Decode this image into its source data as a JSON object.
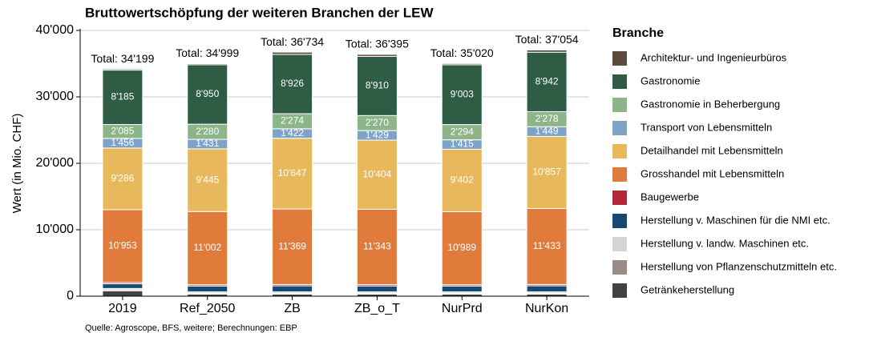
{
  "chart_data": {
    "type": "stacked_bar",
    "title": "Bruttowertschöpfung der weiteren Branchen der LEW",
    "y_label": "Wert (in Mio. CHF)",
    "caption": "Quelle: Agroscope, BFS, weitere; Berechnungen: EBP",
    "legend_title": "Branche",
    "legend_position": "right",
    "grid": true,
    "categories": [
      "2019",
      "Ref_2050",
      "ZB",
      "ZB_o_T",
      "NurPrd",
      "NurKon"
    ],
    "totals": [
      34199,
      34999,
      36734,
      36395,
      35020,
      37054
    ],
    "total_labels": [
      "Total: 34'199",
      "Total: 34'999",
      "Total: 36'734",
      "Total: 36'395",
      "Total: 35'020",
      "Total: 37'054"
    ],
    "ylim": [
      0,
      40000
    ],
    "yticks": [
      0,
      {
        "value": 10000,
        "label": "10'000"
      },
      {
        "value": 20000,
        "label": "20'000"
      },
      {
        "value": 30000,
        "label": "30'000"
      },
      {
        "value": 40000,
        "label": "40'000"
      }
    ],
    "series": [
      {
        "name": "Getränkeherstellung",
        "color": "#424242",
        "values": [
          811,
          300,
          300,
          300,
          300,
          300
        ]
      },
      {
        "name": "Herstellung von Pflanzenschutzmitteln etc.",
        "color": "#9b8b89",
        "values": [
          150,
          150,
          150,
          150,
          150,
          150
        ]
      },
      {
        "name": "Herstellung v. landw. Maschinen etc.",
        "color": "#d7d3d1",
        "values": [
          200,
          200,
          200,
          200,
          200,
          200
        ]
      },
      {
        "name": "Herstellung v. Maschinen für die NMI etc.",
        "color": "#154b72",
        "values": [
          700,
          880,
          908,
          892,
          880,
          911
        ]
      },
      {
        "name": "Baugewerbe",
        "color": "#b5283a",
        "values": [
          200,
          200,
          200,
          200,
          200,
          200
        ]
      },
      {
        "name": "Grosshandel mit Lebensmitteln",
        "color": "#e07b3c",
        "values": [
          10953,
          11002,
          11369,
          11343,
          10989,
          11433
        ],
        "value_labels": [
          "10'953",
          "11'002",
          "11'369",
          "11'343",
          "10'989",
          "11'433"
        ]
      },
      {
        "name": "Detailhandel mit Lebensmitteln",
        "color": "#e8b85c",
        "values": [
          9286,
          9445,
          10647,
          10404,
          9402,
          10857
        ],
        "value_labels": [
          "9'286",
          "9'445",
          "10'647",
          "10'404",
          "9'402",
          "10'857"
        ]
      },
      {
        "name": "Transport von Lebensmitteln",
        "color": "#7fa3c6",
        "values": [
          1456,
          1431,
          1422,
          1429,
          1415,
          1449
        ],
        "value_labels": [
          "1'456",
          "1'431",
          "1'422",
          "1'429",
          "1'415",
          "1'449"
        ]
      },
      {
        "name": "Gastronomie in Beherbergung",
        "color": "#8db58a",
        "values": [
          2085,
          2280,
          2274,
          2270,
          2294,
          2278
        ],
        "value_labels": [
          "2'085",
          "2'280",
          "2'274",
          "2'270",
          "2'294",
          "2'278"
        ]
      },
      {
        "name": "Gastronomie",
        "color": "#2e5c45",
        "values": [
          8185,
          8950,
          8926,
          8910,
          9003,
          8942
        ],
        "value_labels": [
          "8'185",
          "8'950",
          "8'926",
          "8'910",
          "9'003",
          "8'942"
        ]
      },
      {
        "name": "Architektur- und Ingenieurbüros",
        "color": "#5c4a3f",
        "values": [
          173,
          161,
          338,
          297,
          187,
          334
        ]
      }
    ]
  }
}
